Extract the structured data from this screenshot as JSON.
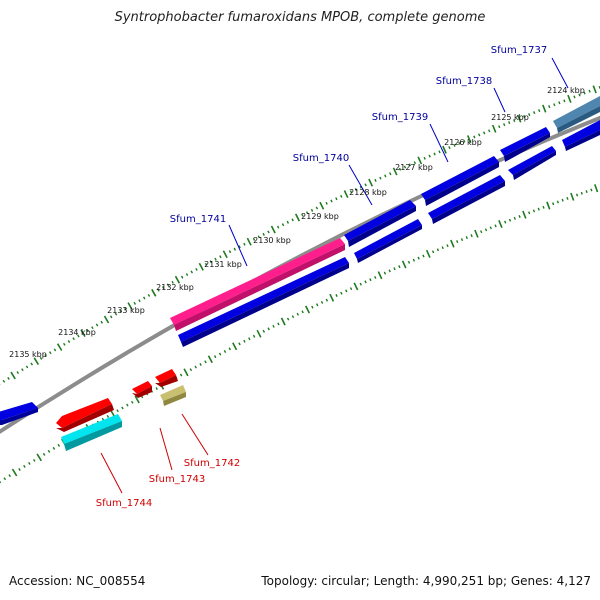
{
  "title": "Syntrophobacter fumaroxidans MPOB, complete genome",
  "footer": {
    "accession": "Accession: NC_008554",
    "summary": "Topology: circular; Length: 4,990,251 bp; Genes: 4,127"
  },
  "scale_ticks": [
    "2124 kbp",
    "2125 kbp",
    "2126 kbp",
    "2127 kbp",
    "2128 kbp",
    "2129 kbp",
    "2130 kbp",
    "2131 kbp",
    "2132 kbp",
    "2133 kbp",
    "2134 kbp",
    "2135 kbp"
  ],
  "genes": [
    {
      "label": "Sfum_1737",
      "color": "#00009c"
    },
    {
      "label": "Sfum_1738",
      "color": "#00009c"
    },
    {
      "label": "Sfum_1739",
      "color": "#00009c"
    },
    {
      "label": "Sfum_1740",
      "color": "#00009c"
    },
    {
      "label": "Sfum_1741",
      "color": "#00009c"
    },
    {
      "label": "Sfum_1742",
      "color": "#d00000"
    },
    {
      "label": "Sfum_1743",
      "color": "#d00000"
    },
    {
      "label": "Sfum_1744",
      "color": "#d00000"
    }
  ],
  "colors": {
    "cds_blue": "#0000e0",
    "highlight_pink": "#ff1e8c",
    "steel_blue": "#4f86b0",
    "red": "#ff0000",
    "cyan": "#00e5ee",
    "khaki": "#c8c070",
    "backbone": "#8c8c8c",
    "ticks": "#1e7a1e"
  }
}
